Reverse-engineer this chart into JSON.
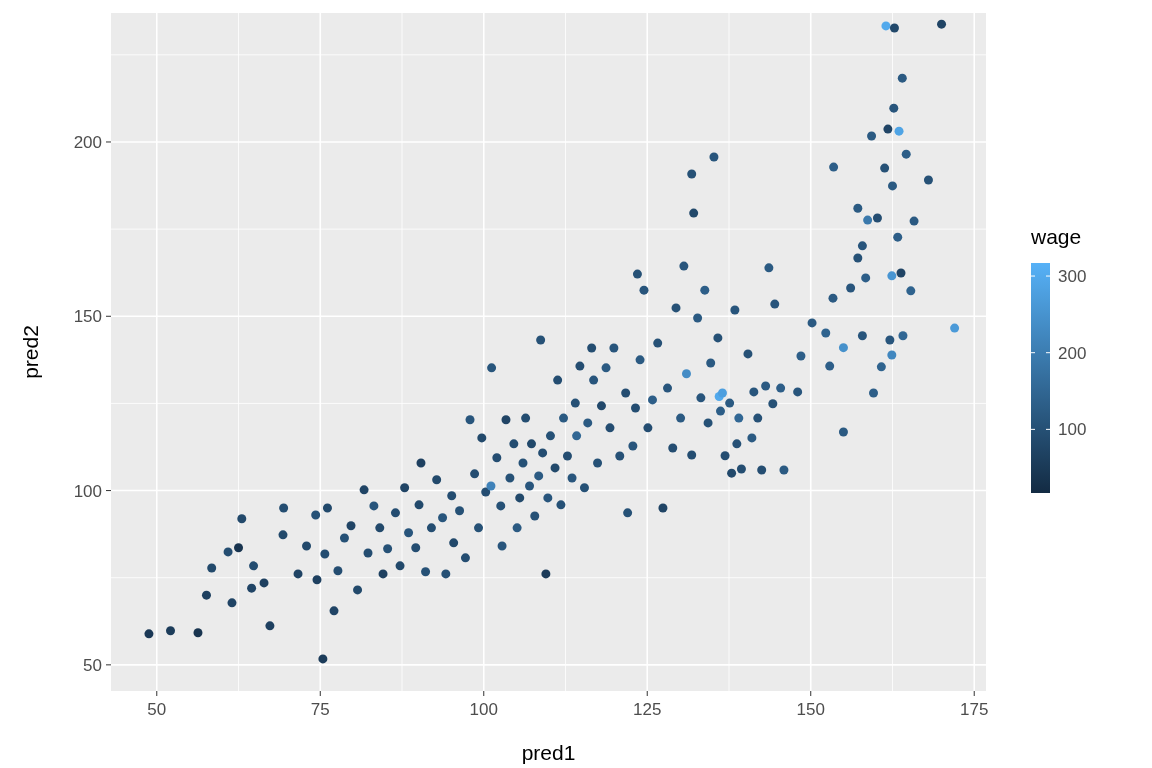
{
  "chart_data": {
    "type": "scatter",
    "xlabel": "pred1",
    "ylabel": "pred2",
    "clabel": "wage",
    "marker": "circle",
    "grid": true,
    "xlim": [
      43,
      176.8
    ],
    "ylim": [
      42.5,
      237
    ],
    "xticks": [
      50,
      75,
      100,
      125,
      150,
      175
    ],
    "yticks": [
      50,
      100,
      150,
      200
    ],
    "clim": [
      17,
      317
    ],
    "cticks": [
      100,
      200,
      300
    ],
    "x": [
      48.8,
      52.1,
      56.3,
      57.6,
      58.4,
      60.9,
      61.5,
      62.5,
      63,
      64.5,
      64.8,
      66.4,
      67.3,
      69.3,
      69.4,
      71.6,
      72.9,
      74.3,
      74.5,
      75.7,
      75.4,
      76.1,
      77.1,
      77.7,
      78.7,
      79.7,
      80.7,
      81.7,
      82.3,
      83.2,
      84.1,
      84.6,
      85.3,
      86.5,
      87.2,
      87.9,
      88.5,
      89.6,
      90.1,
      90.4,
      91.1,
      92,
      92.8,
      93.7,
      94.2,
      95.1,
      95.4,
      96.3,
      97.2,
      97.9,
      98.6,
      99.2,
      99.7,
      100.3,
      101.1,
      101.2,
      102,
      102.6,
      102.8,
      103.4,
      104,
      104.6,
      105.1,
      105.5,
      106,
      106.4,
      107,
      107.3,
      107.8,
      108.4,
      108.7,
      109.5,
      109,
      109.8,
      110.2,
      110.9,
      111.3,
      111.8,
      112.2,
      112.8,
      113.5,
      114,
      114.2,
      114.7,
      115.4,
      115.9,
      116.5,
      116.8,
      117.4,
      118,
      118.7,
      119.3,
      119.9,
      120.8,
      121.7,
      122,
      122.8,
      123.2,
      123.5,
      123.9,
      124.5,
      125.1,
      125.8,
      126.6,
      127.4,
      128.1,
      128.9,
      129.4,
      130.1,
      130.6,
      131,
      131.8,
      131.8,
      132.1,
      132.7,
      133.2,
      133.8,
      134.3,
      134.7,
      135.2,
      136,
      135.8,
      136.2,
      136.5,
      136.9,
      137.6,
      137.9,
      138.4,
      138.7,
      139,
      139.4,
      140.4,
      141,
      141.3,
      141.9,
      142.5,
      143.1,
      143.6,
      144.2,
      144.5,
      145.4,
      145.9,
      148,
      148.5,
      150.2,
      152.3,
      152.9,
      153.4,
      153.5,
      155,
      155,
      156.1,
      157.2,
      157.2,
      157.9,
      158.4,
      158.7,
      161.3,
      157.9,
      159.3,
      159.6,
      160.2,
      160.8,
      161.5,
      161.8,
      162.1,
      162.4,
      162.4,
      162.5,
      162.7,
      162.8,
      163.5,
      163.3,
      163.8,
      164,
      164.1,
      164.6,
      165.3,
      165.8,
      168,
      170,
      172
    ],
    "values": [
      58.9,
      59.8,
      59.2,
      70,
      77.8,
      82.4,
      67.8,
      83.6,
      91.9,
      72,
      78.4,
      73.5,
      61.2,
      87.3,
      95,
      76.1,
      84.1,
      93,
      74.4,
      81.8,
      51.7,
      95,
      65.5,
      77,
      86.4,
      89.9,
      71.5,
      100.2,
      82.1,
      95.6,
      89.3,
      76.1,
      83.3,
      93.6,
      78.4,
      100.8,
      87.9,
      83.6,
      95.9,
      107.9,
      76.7,
      89.3,
      103.1,
      92.2,
      76.1,
      98.5,
      85,
      94.2,
      80.7,
      120.3,
      104.8,
      89.3,
      115.1,
      99.6,
      101.3,
      135.2,
      109.4,
      95.6,
      84.1,
      120.3,
      103.6,
      113.4,
      89.3,
      97.9,
      107.9,
      120.8,
      101.3,
      113.4,
      92.7,
      104.2,
      143.2,
      76.1,
      110.8,
      97.9,
      115.7,
      106.5,
      131.7,
      95.9,
      120.8,
      109.9,
      103.6,
      125.1,
      115.7,
      135.7,
      100.8,
      119.4,
      140.9,
      131.7,
      107.9,
      124.3,
      135.2,
      118,
      140.9,
      109.9,
      128,
      93.6,
      112.8,
      123.7,
      162.1,
      137.5,
      157.5,
      118,
      126,
      142.3,
      95,
      129.4,
      112.2,
      152.4,
      120.8,
      164.4,
      133.5,
      110.2,
      190.8,
      179.6,
      149.5,
      126.6,
      157.5,
      119.4,
      136.6,
      195.7,
      127,
      143.8,
      122.8,
      128,
      110,
      125.1,
      105,
      151.8,
      113.4,
      120.8,
      106.2,
      139.2,
      115.1,
      128.3,
      120.8,
      105.9,
      130,
      163.9,
      124.9,
      153.5,
      129.4,
      105.9,
      128.3,
      138.6,
      148.1,
      145.2,
      135.7,
      155.2,
      192.8,
      141,
      116.8,
      158.1,
      166.7,
      181,
      144.4,
      161,
      177.6,
      192.5,
      170.2,
      201.7,
      128,
      178.2,
      135.5,
      233.3,
      203.7,
      143.2,
      161.6,
      138.9,
      187.4,
      209.7,
      232.7,
      203.1,
      172.7,
      162.4,
      218.3,
      144.4,
      196.5,
      157.3,
      177.3,
      189.1,
      233.8,
      146.6
    ],
    "cvalues": [
      50,
      60,
      40,
      70,
      90,
      100,
      80,
      40,
      90,
      80,
      100,
      70,
      70,
      90,
      100,
      80,
      90,
      110,
      70,
      100,
      60,
      90,
      80,
      100,
      110,
      80,
      90,
      80,
      100,
      120,
      90,
      70,
      110,
      100,
      90,
      80,
      120,
      100,
      90,
      70,
      110,
      100,
      90,
      120,
      110,
      100,
      90,
      110,
      100,
      120,
      100,
      110,
      90,
      100,
      220,
      120,
      100,
      110,
      120,
      80,
      110,
      100,
      130,
      90,
      110,
      100,
      120,
      90,
      110,
      130,
      110,
      60,
      100,
      120,
      110,
      90,
      100,
      110,
      130,
      100,
      120,
      110,
      160,
      100,
      110,
      130,
      100,
      120,
      110,
      90,
      130,
      100,
      120,
      110,
      100,
      110,
      120,
      100,
      110,
      130,
      120,
      100,
      140,
      110,
      80,
      120,
      100,
      110,
      130,
      120,
      240,
      100,
      110,
      90,
      130,
      120,
      140,
      110,
      130,
      120,
      300,
      110,
      140,
      280,
      100,
      130,
      90,
      120,
      110,
      160,
      100,
      110,
      130,
      120,
      110,
      100,
      130,
      130,
      110,
      120,
      140,
      130,
      120,
      140,
      130,
      150,
      140,
      130,
      140,
      250,
      130,
      120,
      110,
      130,
      120,
      140,
      200,
      110,
      120,
      130,
      140,
      100,
      150,
      300,
      80,
      120,
      260,
      230,
      130,
      120,
      90,
      290,
      140,
      80,
      130,
      160,
      140,
      150,
      130,
      110,
      80,
      270
    ]
  }
}
